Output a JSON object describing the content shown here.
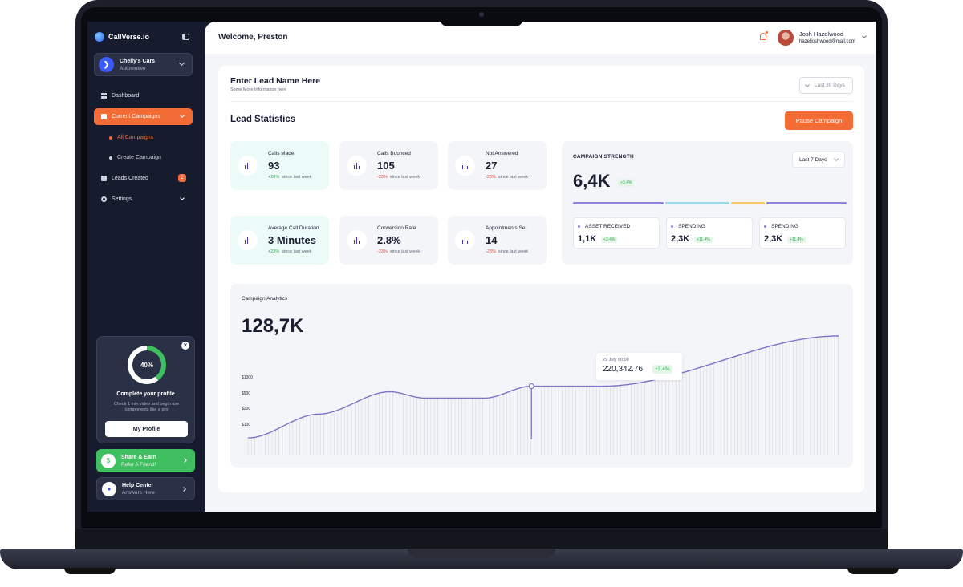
{
  "app": {
    "brand": "CallVerse.io"
  },
  "account": {
    "name": "Chelly's Cars",
    "type": "Automotive"
  },
  "nav": {
    "dashboard": "Dashboard",
    "campaigns": "Current Campaigns",
    "all_campaigns": "All Campaigns",
    "create_campaign": "Create Campaign",
    "leads": "Leads Created",
    "leads_count": "2",
    "settings": "Settings"
  },
  "profile_card": {
    "percent": "40%",
    "percent_value": 40,
    "title": "Complete your profile",
    "description": "Check 1 min video and begin use components like a pro",
    "button": "My Profile"
  },
  "promos": {
    "share_title": "Share & Earn",
    "share_sub": "Refer A Friend!",
    "help_title": "Help Center",
    "help_sub": "Answers Here"
  },
  "header": {
    "welcome": "Welcome, Preston",
    "user_name": "Josh Hazelwood",
    "user_email": "hazeljoshwood@mail.com"
  },
  "lead": {
    "name": "Enter Lead Name Here",
    "info": "Some More Information here",
    "date_filter": "Last 30 Days"
  },
  "stats": {
    "title": "Lead Statistics",
    "pause_button": "Pause Campaign",
    "since": "since last week",
    "cards": [
      {
        "label": "Calls Made",
        "value": "93",
        "delta": "+23%"
      },
      {
        "label": "Calls Bounced",
        "value": "105",
        "delta": "-23%"
      },
      {
        "label": "Not Answered",
        "value": "27",
        "delta": "-23%"
      },
      {
        "label": "Average Call Duration",
        "value": "3 Minutes",
        "delta": "+23%"
      },
      {
        "label": "Conversion Rate",
        "value": "2.8%",
        "delta": "-23%"
      },
      {
        "label": "Appointments Set",
        "value": "14",
        "delta": "-23%"
      }
    ]
  },
  "strength": {
    "title": "CAMPAIGN STRENGTH",
    "range": "Last 7 Days",
    "value": "6,4K",
    "badge": "+3.4%",
    "segment_colors": [
      "#8a83d6",
      "#9fd8e6",
      "#f4c96a",
      "#8a83d6"
    ],
    "items": [
      {
        "label": "ASSET RECEIVED",
        "value": "1,1K",
        "badge": "+3.4%"
      },
      {
        "label": "SPENDING",
        "value": "2,3K",
        "badge": "+11.4%"
      },
      {
        "label": "SPENDING",
        "value": "2,3K",
        "badge": "+11.4%"
      }
    ]
  },
  "analytics": {
    "title": "Campaign Analytics",
    "value": "128,7K",
    "tooltip": {
      "date": "29 July 00:00",
      "value": "220,342.76",
      "badge": "+3.4%"
    }
  },
  "colors": {
    "accent": "#f36b35",
    "sidebar": "#161b2e",
    "line": "#7d73c9",
    "positive": "#2ea84f",
    "negative": "#e24b3c"
  },
  "chart_data": {
    "type": "area",
    "title": "Campaign Analytics",
    "ytick_labels": [
      "$1000",
      "$500",
      "$200",
      "$100"
    ],
    "series": [
      {
        "x": [
          0,
          12,
          24,
          30,
          40,
          48,
          55,
          60,
          100
        ],
        "y": [
          0.22,
          0.52,
          0.8,
          0.72,
          0.72,
          0.87,
          0.87,
          0.87,
          1.5
        ]
      }
    ],
    "xlim": [
      0,
      100
    ],
    "ylim": [
      0,
      1.55
    ],
    "highlight": {
      "x": 48,
      "y": 0.87
    }
  }
}
